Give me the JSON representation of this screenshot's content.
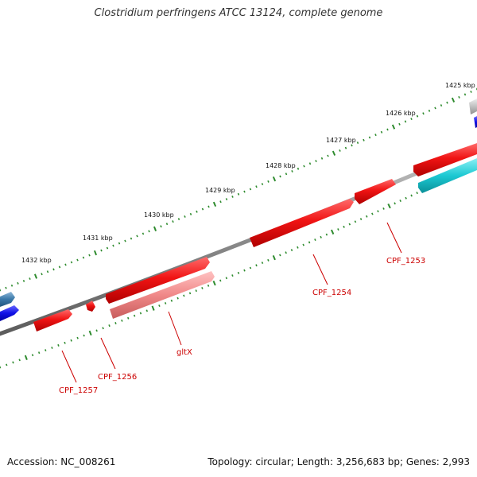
{
  "title": "Clostridium perfringens ATCC 13124, complete genome",
  "footer": {
    "accession": "Accession: NC_008261",
    "summary": "Topology: circular; Length: 3,256,683 bp; Genes: 2,993"
  },
  "ruler_labels": [
    "1425 kbp",
    "1426 kbp",
    "1427 kbp",
    "1428 kbp",
    "1429 kbp",
    "1430 kbp",
    "1431 kbp",
    "1432 kbp"
  ],
  "gene_labels": [
    "CPF_1253",
    "CPF_1254",
    "gltX",
    "CPF_1256",
    "CPF_1257"
  ],
  "colors": {
    "backbone": "#7f7f7f",
    "gene_red": "#ee1111",
    "gene_pink": "#f08c8c",
    "gene_cyan": "#19c8d2",
    "gene_blue": "#1010e6",
    "gene_steel": "#3a78a8",
    "gene_grey": "#bdbdbd",
    "tick": "#2e8b2e",
    "label": "#cc0000"
  }
}
